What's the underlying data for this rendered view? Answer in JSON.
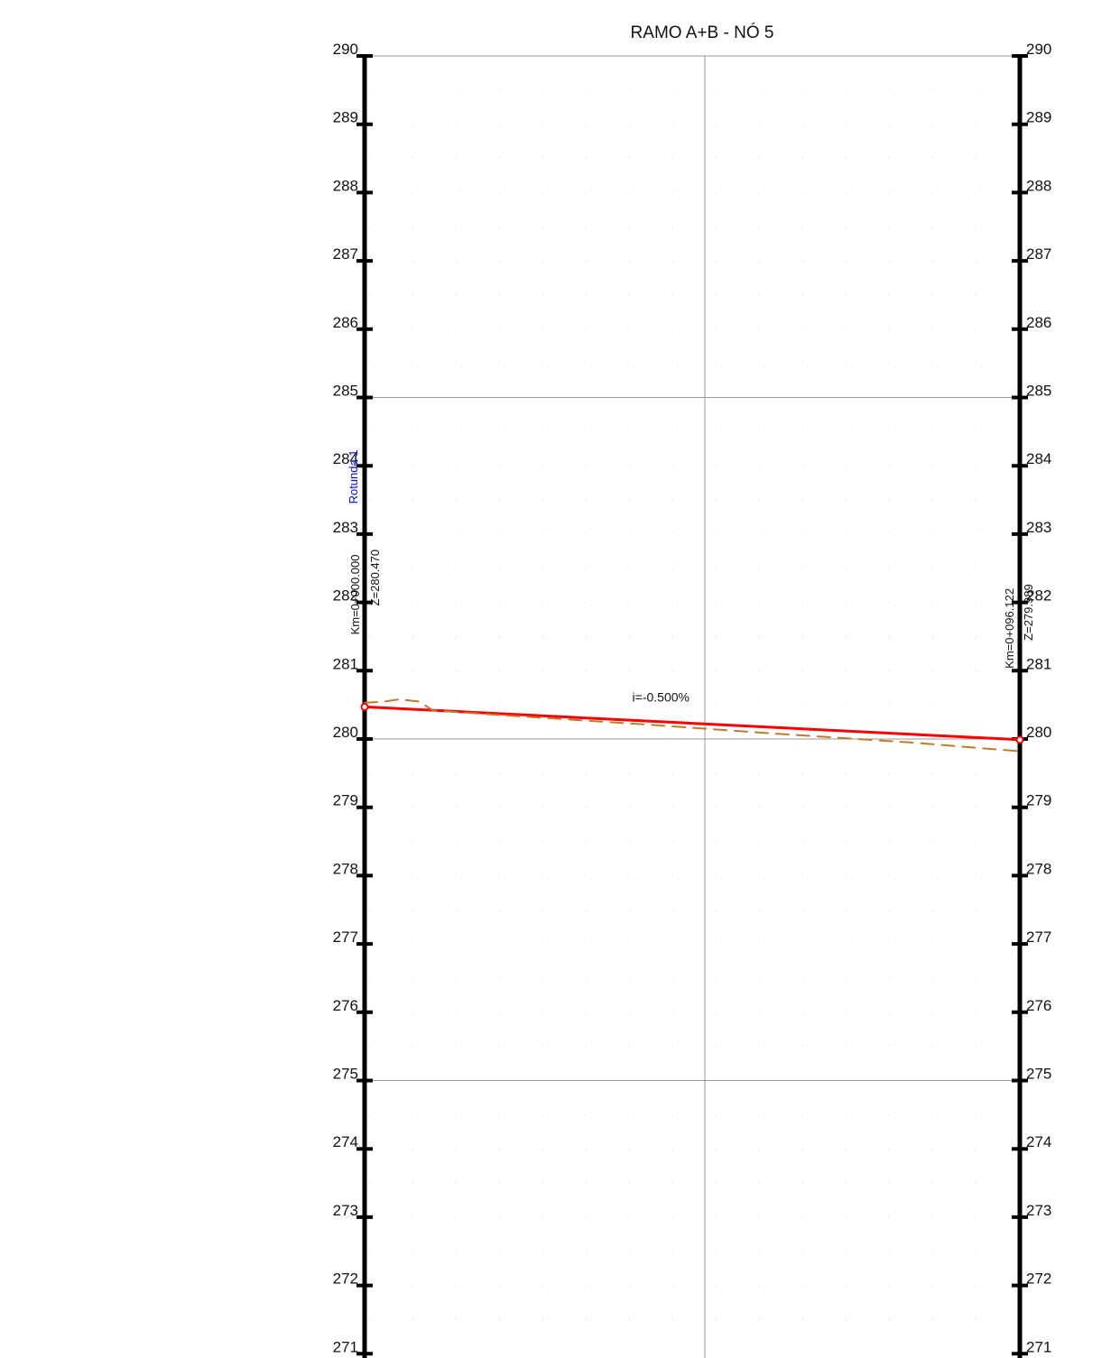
{
  "chart_data": {
    "type": "line",
    "title": "RAMO A+B - NÓ 5",
    "xlabel": "",
    "ylabel": "",
    "xlim": [
      0,
      96.122
    ],
    "ylim": [
      271,
      290
    ],
    "y_ticks": [
      "290",
      "289",
      "288",
      "287",
      "286",
      "285",
      "284",
      "283",
      "282",
      "281",
      "280",
      "279",
      "278",
      "277",
      "276",
      "275",
      "274",
      "273",
      "272",
      "271"
    ],
    "y_tick_values": [
      290,
      289,
      288,
      287,
      286,
      285,
      284,
      283,
      282,
      281,
      280,
      279,
      278,
      277,
      276,
      275,
      274,
      273,
      272,
      271
    ],
    "major_gridlines_y": [
      290,
      285,
      280,
      275
    ],
    "grid": true,
    "series": [
      {
        "name": "",
        "style": "solid",
        "color": "#ff0000",
        "x": [
          0,
          96.122
        ],
        "y": [
          280.47,
          279.989
        ]
      },
      {
        "name": "",
        "style": "dashed",
        "color": "#c07a2a",
        "x": [
          0,
          3,
          5,
          8,
          10,
          20,
          40,
          60,
          80,
          96.122
        ],
        "y": [
          280.53,
          280.55,
          280.58,
          280.55,
          280.42,
          280.35,
          280.22,
          280.08,
          279.95,
          279.82
        ]
      }
    ],
    "annotations": {
      "grade": "i=-0.500%",
      "grade_at": {
        "x": 48,
        "y": 280.3
      },
      "start_station": {
        "km": "Km=0+000.000",
        "z": "Z=280.470",
        "x": 0,
        "y": 280.47
      },
      "end_station": {
        "km": "Km=0+096.122",
        "z": "Z=279.989",
        "x": 96.122,
        "y": 279.989
      },
      "note": "Rotunda 1"
    }
  },
  "colors": {
    "profile_line": "#ff0000",
    "terrain_line": "#c07a2a",
    "note": "#0000ff",
    "axis": "#000000",
    "grid": "#999999"
  }
}
